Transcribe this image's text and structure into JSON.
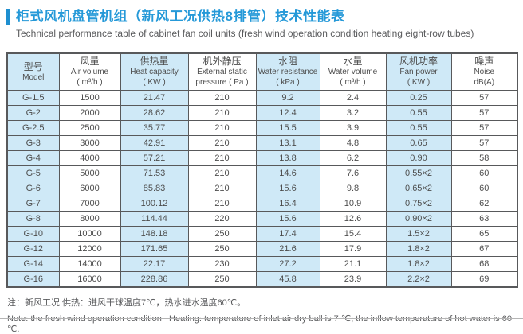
{
  "header": {
    "title_zh": "柜式风机盘管机组（新风工况供热8排管）技术性能表",
    "title_en": "Technical performance table of cabinet fan coil units (fresh wind operation condition heating eight-row tubes)"
  },
  "table": {
    "columns": [
      {
        "zh": "型号",
        "en": "Model",
        "unit": ""
      },
      {
        "zh": "风量",
        "en": "Air volume",
        "unit": "( m³/h )"
      },
      {
        "zh": "供热量",
        "en": "Heat capacity",
        "unit": "( KW )"
      },
      {
        "zh": "机外静压",
        "en": "External static",
        "unit": "pressure ( Pa )"
      },
      {
        "zh": "水阻",
        "en": "Water resistance",
        "unit": "( kPa )"
      },
      {
        "zh": "水量",
        "en": "Water volume",
        "unit": "( m³/h )"
      },
      {
        "zh": "风机功率",
        "en": "Fan power",
        "unit": "( KW )"
      },
      {
        "zh": "噪声",
        "en": "Noise",
        "unit": "dB(A)"
      }
    ],
    "rows": [
      [
        "G-1.5",
        "1500",
        "21.47",
        "210",
        "9.2",
        "2.4",
        "0.25",
        "57"
      ],
      [
        "G-2",
        "2000",
        "28.62",
        "210",
        "12.4",
        "3.2",
        "0.55",
        "57"
      ],
      [
        "G-2.5",
        "2500",
        "35.77",
        "210",
        "15.5",
        "3.9",
        "0.55",
        "57"
      ],
      [
        "G-3",
        "3000",
        "42.91",
        "210",
        "13.1",
        "4.8",
        "0.65",
        "57"
      ],
      [
        "G-4",
        "4000",
        "57.21",
        "210",
        "13.8",
        "6.2",
        "0.90",
        "58"
      ],
      [
        "G-5",
        "5000",
        "71.53",
        "210",
        "14.6",
        "7.6",
        "0.55×2",
        "60"
      ],
      [
        "G-6",
        "6000",
        "85.83",
        "210",
        "15.6",
        "9.8",
        "0.65×2",
        "60"
      ],
      [
        "G-7",
        "7000",
        "100.12",
        "210",
        "16.4",
        "10.9",
        "0.75×2",
        "62"
      ],
      [
        "G-8",
        "8000",
        "114.44",
        "220",
        "15.6",
        "12.6",
        "0.90×2",
        "63"
      ],
      [
        "G-10",
        "10000",
        "148.18",
        "250",
        "17.4",
        "15.4",
        "1.5×2",
        "65"
      ],
      [
        "G-12",
        "12000",
        "171.65",
        "250",
        "21.6",
        "17.9",
        "1.8×2",
        "67"
      ],
      [
        "G-14",
        "14000",
        "22.17",
        "230",
        "27.2",
        "21.1",
        "1.8×2",
        "68"
      ],
      [
        "G-16",
        "16000",
        "228.86",
        "250",
        "45.8",
        "23.9",
        "2.2×2",
        "69"
      ]
    ]
  },
  "notes": {
    "zh": "注：新风工况 供热：进风干球温度7℃，热水进水温度60℃。",
    "en": "Note: the fresh wind operation condition   Heating: temperature of inlet air dry ball is 7 ℃; the inflow temperature of hot water is 60 ℃."
  },
  "colors": {
    "brand_blue": "#2599d8",
    "accent_blue": "#1e8fd0",
    "cell_blue": "#cfe9f7",
    "border_dark": "#58595b"
  }
}
